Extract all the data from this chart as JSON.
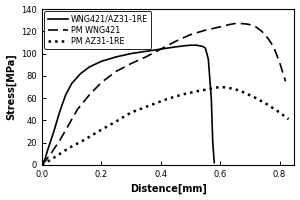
{
  "title": "",
  "xlabel": "Distence[mm]",
  "ylabel": "Stress[MPa]",
  "xlim": [
    0,
    0.85
  ],
  "ylim": [
    0,
    140
  ],
  "xticks": [
    0.0,
    0.2,
    0.4,
    0.6,
    0.8
  ],
  "yticks": [
    0,
    20,
    40,
    60,
    80,
    100,
    120,
    140
  ],
  "legend": [
    {
      "label": "WNG421/AZ31-1RE"
    },
    {
      "label": "PM WNG421"
    },
    {
      "label": "PM AZ31-1RE"
    }
  ],
  "line_color": "#000000",
  "background_color": "#ffffff",
  "series": {
    "WNG421": {
      "x": [
        0.0,
        0.01,
        0.02,
        0.04,
        0.06,
        0.08,
        0.1,
        0.13,
        0.16,
        0.2,
        0.25,
        0.3,
        0.35,
        0.4,
        0.45,
        0.48,
        0.5,
        0.52,
        0.54,
        0.55,
        0.56,
        0.57,
        0.575,
        0.58
      ],
      "y": [
        0.0,
        5.0,
        14.0,
        30.0,
        48.0,
        63.0,
        73.0,
        82.0,
        88.0,
        93.0,
        97.0,
        100.0,
        102.0,
        104.0,
        106.0,
        107.0,
        107.5,
        107.5,
        106.5,
        105.0,
        95.0,
        60.0,
        20.0,
        2.0
      ]
    },
    "PM_WNG421": {
      "x": [
        0.0,
        0.01,
        0.03,
        0.06,
        0.09,
        0.12,
        0.16,
        0.2,
        0.25,
        0.3,
        0.35,
        0.4,
        0.45,
        0.5,
        0.55,
        0.6,
        0.63,
        0.65,
        0.67,
        0.69,
        0.7,
        0.72,
        0.74,
        0.76,
        0.78,
        0.8,
        0.82
      ],
      "y": [
        0.0,
        3.0,
        10.0,
        22.0,
        36.0,
        50.0,
        63.0,
        74.0,
        84.0,
        91.0,
        97.0,
        104.0,
        111.0,
        117.0,
        121.0,
        124.0,
        126.0,
        127.0,
        127.0,
        126.5,
        126.0,
        124.0,
        120.0,
        114.0,
        106.0,
        92.0,
        75.0
      ]
    },
    "PM_AZ31": {
      "x": [
        0.0,
        0.02,
        0.05,
        0.09,
        0.14,
        0.19,
        0.25,
        0.3,
        0.36,
        0.42,
        0.47,
        0.52,
        0.56,
        0.58,
        0.6,
        0.62,
        0.65,
        0.68,
        0.72,
        0.76,
        0.8,
        0.83
      ],
      "y": [
        0.0,
        3.0,
        8.0,
        15.0,
        22.0,
        30.0,
        39.0,
        47.0,
        53.0,
        59.0,
        63.0,
        66.0,
        68.0,
        69.0,
        70.0,
        69.5,
        68.0,
        65.0,
        60.0,
        54.0,
        47.0,
        41.0
      ]
    }
  }
}
